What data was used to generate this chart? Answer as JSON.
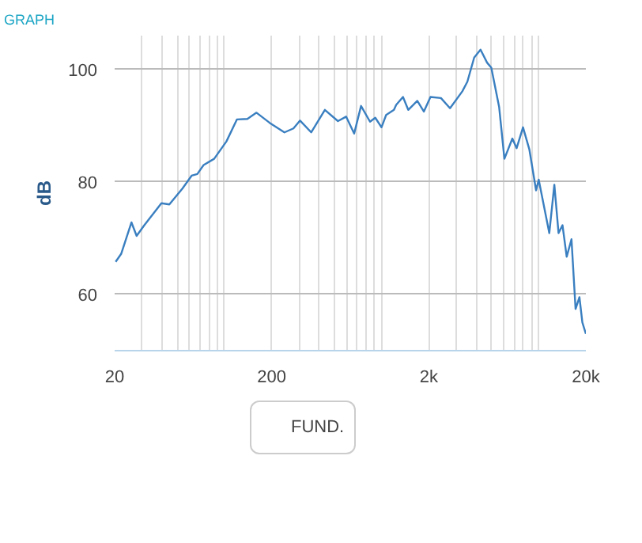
{
  "chart_data": {
    "type": "line",
    "title": "GRAPH",
    "ylabel": "dB",
    "x": [
      20.3,
      22,
      25.6,
      27.6,
      30.9,
      39.7,
      44.6,
      54,
      61.8,
      67.2,
      73.7,
      86,
      103,
      120,
      140,
      160,
      194,
      241,
      275,
      303,
      357,
      436,
      528,
      595,
      670,
      741,
      845,
      913,
      1000,
      1070,
      1200,
      1240,
      1370,
      1480,
      1690,
      1860,
      2050,
      2390,
      2730,
      3270,
      3520,
      3890,
      4270,
      4700,
      5000,
      5610,
      6060,
      6810,
      7250,
      7960,
      8730,
      9640,
      10020,
      11700,
      12600,
      13400,
      14200,
      15100,
      16200,
      17200,
      18200,
      19000,
      20000
    ],
    "series": [
      {
        "name": "FUND.",
        "color": "#3a7fc0",
        "values": [
          65.8,
          67.2,
          72.8,
          70.4,
          72.3,
          76.2,
          76.0,
          78.8,
          81.1,
          81.4,
          83.0,
          84.1,
          87.2,
          91.1,
          91.2,
          92.3,
          90.5,
          88.8,
          89.5,
          90.9,
          88.8,
          92.8,
          90.8,
          91.6,
          88.6,
          93.5,
          90.7,
          91.4,
          89.7,
          91.9,
          92.8,
          93.7,
          95.1,
          92.8,
          94.4,
          92.5,
          95.1,
          94.9,
          93.1,
          96.1,
          97.8,
          102.1,
          103.5,
          101.2,
          100.3,
          93.3,
          84.1,
          87.7,
          86.0,
          89.7,
          85.8,
          78.5,
          80.4,
          70.9,
          79.5,
          70.9,
          72.3,
          66.7,
          69.8,
          57.4,
          59.5,
          55.0,
          53.0
        ]
      }
    ],
    "log": "x",
    "xlim": [
      20,
      20000
    ],
    "xticks": [
      20,
      200,
      {
        "value": 2000,
        "label": "2k"
      },
      {
        "value": 20000,
        "label": "20k"
      }
    ],
    "ylim": [
      50,
      106
    ],
    "yticks": [
      60,
      80,
      100
    ],
    "grid": true,
    "legend": "bottom",
    "marker": "none",
    "line_style": "solid"
  }
}
